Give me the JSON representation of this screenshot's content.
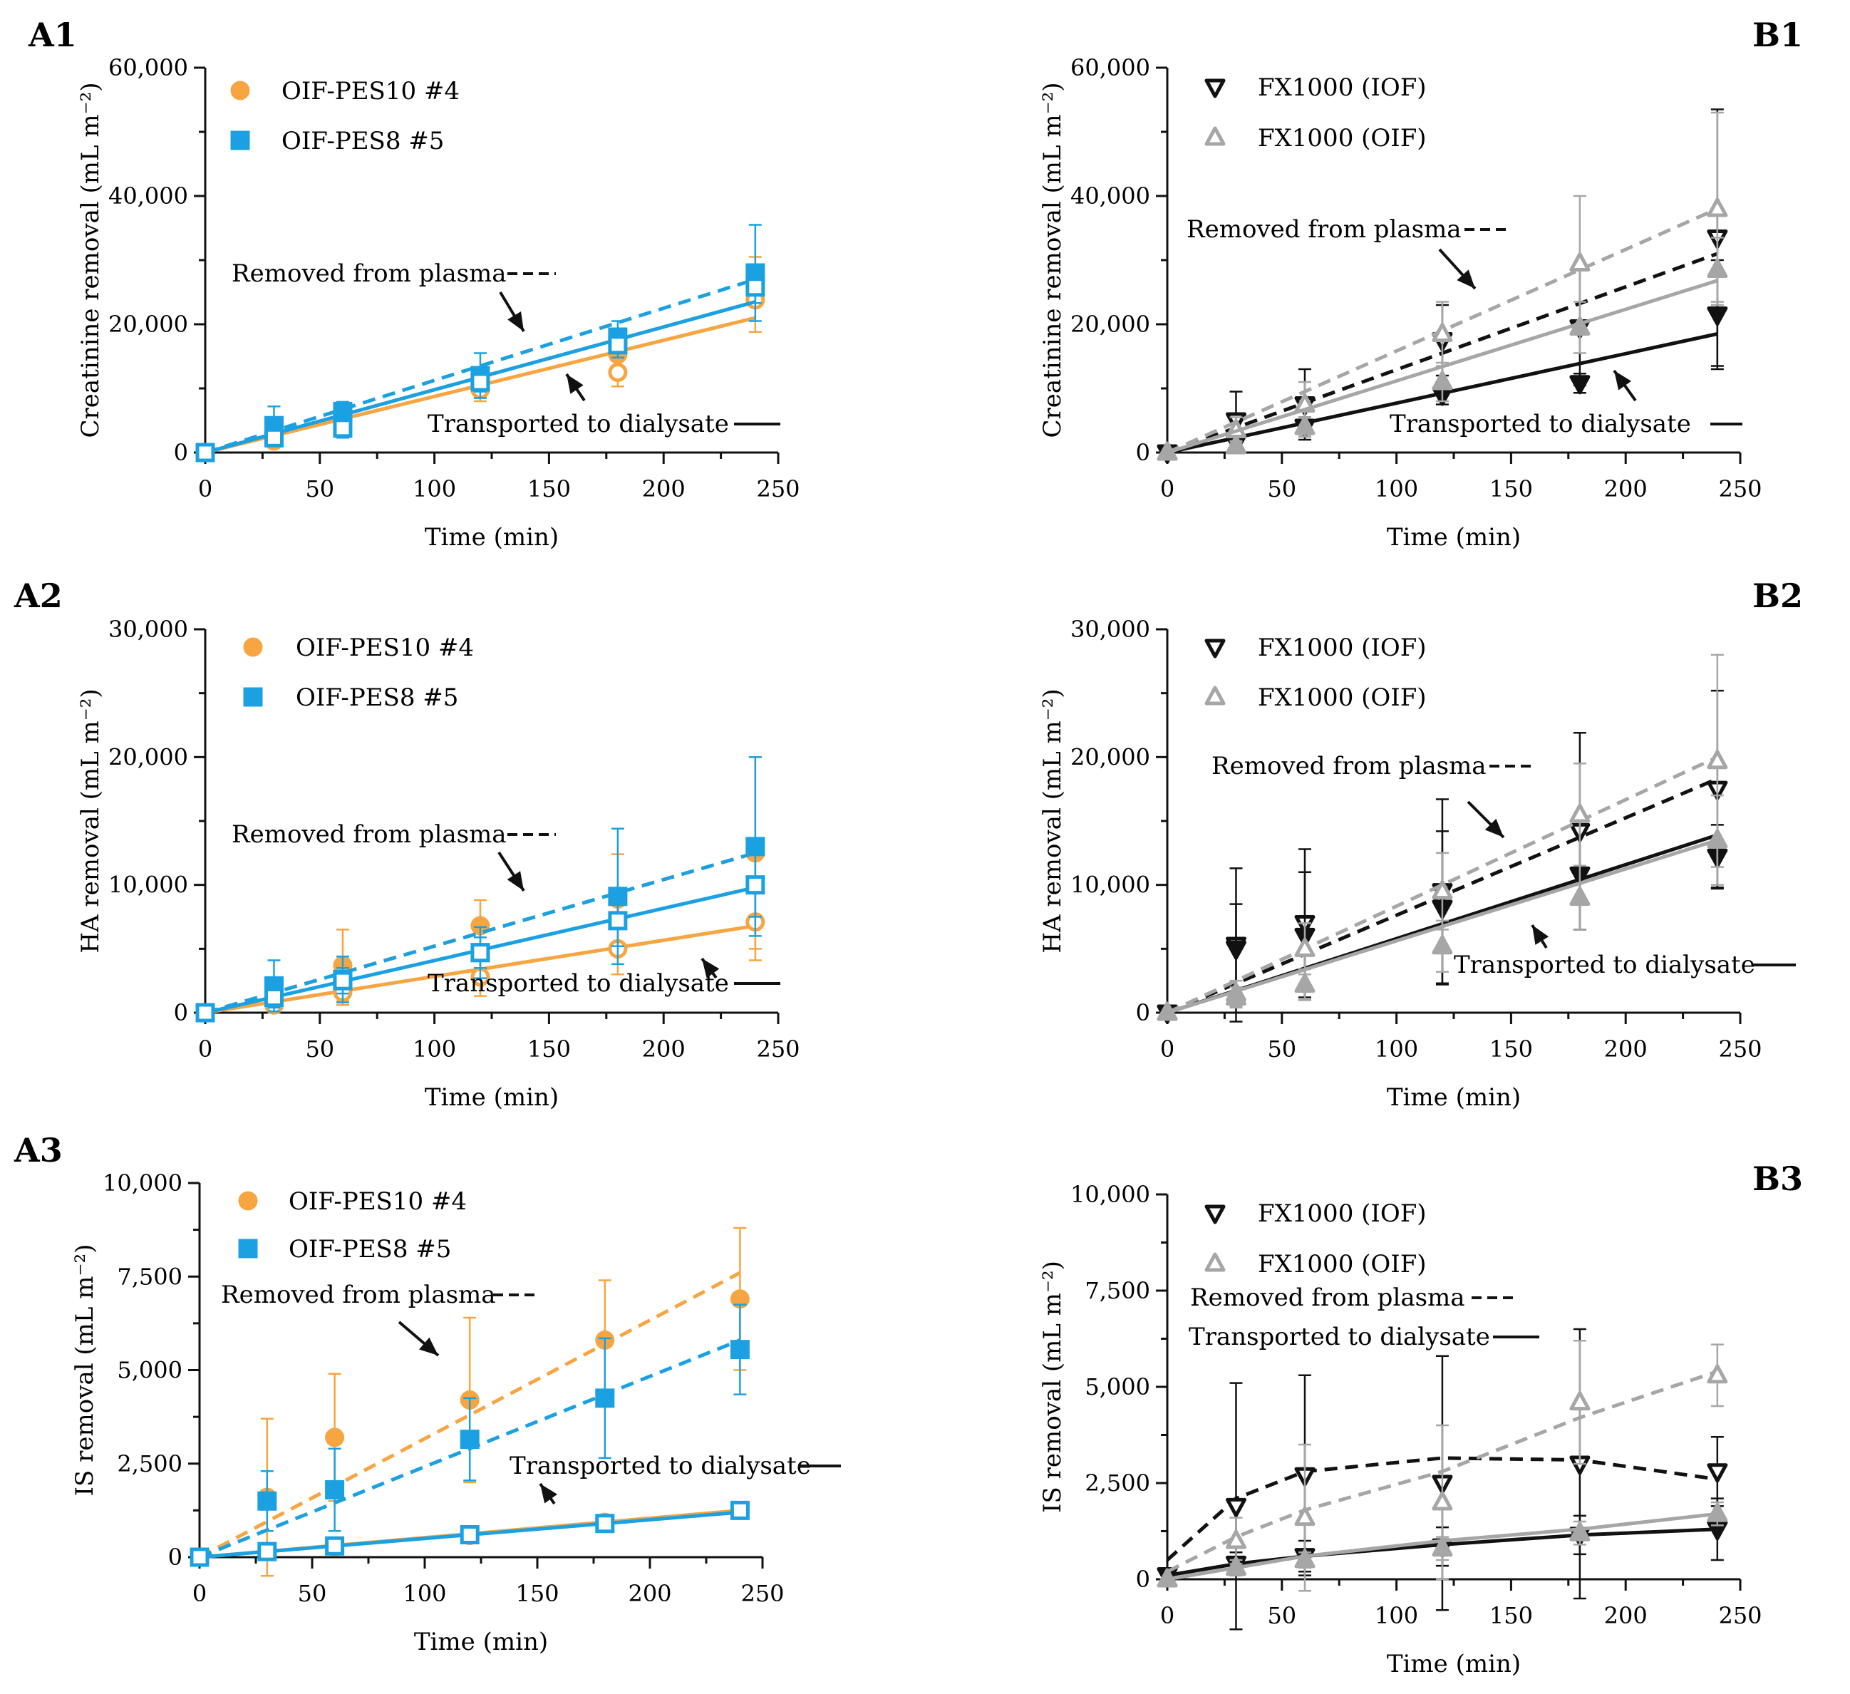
{
  "figure": {
    "colors": {
      "orange": "#f7a541",
      "blue": "#1ba1e2",
      "black": "#111111",
      "gray": "#a6a6a6"
    }
  },
  "chart_data": [
    {
      "panel": "A1",
      "type": "line",
      "xlabel": "Time (min)",
      "ylabel": "Creatinine removal (mL m⁻²)",
      "xlim": [
        0,
        250
      ],
      "ylim": [
        0,
        60000
      ],
      "xticks": [
        0,
        50,
        100,
        150,
        200,
        250
      ],
      "yticks": [
        0,
        20000,
        40000,
        60000
      ],
      "ytick_labels": [
        "0",
        "20,000",
        "40,000",
        "60,000"
      ],
      "x": [
        0,
        30,
        60,
        120,
        180,
        240
      ],
      "legend": [
        {
          "label": "OIF-PES10 #4",
          "marker": "circle",
          "color": "#f7a541"
        },
        {
          "label": "OIF-PES8 #5",
          "marker": "square",
          "color": "#1ba1e2"
        }
      ],
      "annotations": {
        "plasma": "Removed from plasma",
        "dialysate": "Transported to dialysate"
      },
      "series": [
        {
          "name": "OIF-PES10 #4 removed from plasma",
          "color": "#f7a541",
          "marker": "circle",
          "filled": true,
          "values": [
            0,
            2000,
            5300,
            10500,
            15300,
            27000
          ],
          "errors": [
            0,
            1200,
            1500,
            2000,
            2500,
            3500
          ],
          "fit_line": [
            0,
            23500
          ]
        },
        {
          "name": "OIF-PES10 #4 transported to dialysate",
          "color": "#f7a541",
          "marker": "circle",
          "filled": false,
          "values": [
            0,
            1800,
            4800,
            9800,
            12500,
            23800
          ],
          "errors": [
            0,
            1000,
            1500,
            1800,
            2200,
            5000
          ],
          "fit_line": [
            0,
            21000
          ]
        },
        {
          "name": "OIF-PES8 #5 removed from plasma",
          "color": "#1ba1e2",
          "marker": "square",
          "filled": true,
          "values": [
            0,
            4200,
            6400,
            12000,
            18000,
            28000
          ],
          "errors": [
            0,
            3000,
            1500,
            3500,
            2500,
            7500
          ],
          "fit_line": [
            0,
            27000
          ]
        },
        {
          "name": "OIF-PES8 #5 transported to dialysate",
          "color": "#1ba1e2",
          "marker": "square",
          "filled": false,
          "values": [
            0,
            2300,
            3800,
            11000,
            16800,
            25800
          ],
          "errors": [
            0,
            1000,
            1500,
            1500,
            2000,
            2500
          ],
          "fit_line": [
            0,
            23500
          ]
        }
      ]
    },
    {
      "panel": "B1",
      "type": "line",
      "xlabel": "Time (min)",
      "ylabel": "Creatinine removal (mL m⁻²)",
      "xlim": [
        0,
        250
      ],
      "ylim": [
        0,
        60000
      ],
      "xticks": [
        0,
        50,
        100,
        150,
        200,
        250
      ],
      "yticks": [
        0,
        20000,
        40000,
        60000
      ],
      "ytick_labels": [
        "0",
        "20,000",
        "40,000",
        "60,000"
      ],
      "x": [
        0,
        30,
        60,
        120,
        180,
        240
      ],
      "legend": [
        {
          "label": "FX1000 (IOF)",
          "marker": "triangle-down",
          "color": "#111111"
        },
        {
          "label": "FX1000 (OIF)",
          "marker": "triangle-up",
          "color": "#a6a6a6"
        }
      ],
      "annotations": {
        "plasma": "Removed from plasma",
        "dialysate": "Transported to dialysate"
      },
      "series": [
        {
          "name": "FX1000 (IOF) removed from plasma",
          "color": "#111111",
          "marker": "triangle-down",
          "filled": false,
          "values": [
            0,
            5000,
            7500,
            17500,
            19500,
            33500
          ],
          "errors": [
            0,
            4500,
            5500,
            5500,
            9000,
            20000
          ],
          "fit_line": [
            0,
            31000
          ]
        },
        {
          "name": "FX1000 (IOF) transported to dialysate",
          "color": "#111111",
          "marker": "triangle-down",
          "filled": true,
          "values": [
            0,
            1500,
            4000,
            9000,
            10800,
            21500
          ],
          "errors": [
            0,
            1000,
            1500,
            1500,
            1500,
            8500
          ],
          "fit_line": [
            0,
            18500
          ]
        },
        {
          "name": "FX1000 (OIF) removed from plasma",
          "color": "#a6a6a6",
          "marker": "triangle-up",
          "filled": false,
          "values": [
            0,
            3500,
            7500,
            18500,
            29500,
            38000
          ],
          "errors": [
            0,
            2000,
            3500,
            5000,
            10500,
            15000
          ],
          "fit_line": [
            0,
            38000
          ]
        },
        {
          "name": "FX1000 (OIF) transported to dialysate",
          "color": "#a6a6a6",
          "marker": "triangle-up",
          "filled": true,
          "values": [
            0,
            1000,
            4000,
            11000,
            19500,
            28500
          ],
          "errors": [
            0,
            800,
            1500,
            3000,
            4000,
            5000
          ],
          "fit_line": [
            0,
            26800
          ]
        }
      ]
    },
    {
      "panel": "A2",
      "type": "line",
      "xlabel": "Time (min)",
      "ylabel": "HA removal (mL m⁻²)",
      "xlim": [
        0,
        250
      ],
      "ylim": [
        0,
        30000
      ],
      "xticks": [
        0,
        50,
        100,
        150,
        200,
        250
      ],
      "yticks": [
        0,
        10000,
        20000,
        30000
      ],
      "ytick_labels": [
        "0",
        "10,000",
        "20,000",
        "30,000"
      ],
      "x": [
        0,
        30,
        60,
        120,
        180,
        240
      ],
      "legend": [
        {
          "label": "OIF-PES10 #4",
          "marker": "circle",
          "color": "#f7a541"
        },
        {
          "label": "OIF-PES8 #5",
          "marker": "square",
          "color": "#1ba1e2"
        }
      ],
      "annotations": {
        "plasma": "Removed from plasma",
        "dialysate": "Transported to dialysate"
      },
      "series": [
        {
          "name": "OIF-PES10 #4 removed from plasma",
          "color": "#f7a541",
          "marker": "circle",
          "filled": true,
          "values": [
            0,
            1000,
            3700,
            6800,
            8900,
            12500
          ],
          "errors": [
            0,
            1000,
            2800,
            2000,
            3500,
            7500
          ],
          "fit_line": [
            0,
            12500
          ]
        },
        {
          "name": "OIF-PES10 #4 transported to dialysate",
          "color": "#f7a541",
          "marker": "circle",
          "filled": false,
          "values": [
            0,
            600,
            1600,
            2800,
            5000,
            7100
          ],
          "errors": [
            0,
            500,
            1000,
            1500,
            2000,
            3000
          ],
          "fit_line": [
            0,
            6800
          ]
        },
        {
          "name": "OIF-PES8 #5 removed from plasma",
          "color": "#1ba1e2",
          "marker": "square",
          "filled": true,
          "values": [
            0,
            2100,
            2600,
            4700,
            9100,
            13000
          ],
          "errors": [
            0,
            2000,
            1800,
            2000,
            5300,
            7000
          ],
          "fit_line": [
            0,
            12500
          ]
        },
        {
          "name": "OIF-PES8 #5 transported to dialysate",
          "color": "#1ba1e2",
          "marker": "square",
          "filled": false,
          "values": [
            0,
            1200,
            2500,
            4700,
            7200,
            10000
          ],
          "errors": [
            0,
            800,
            1000,
            1200,
            2000,
            2500
          ],
          "fit_line": [
            0,
            9800
          ]
        }
      ]
    },
    {
      "panel": "B2",
      "type": "line",
      "xlabel": "Time (min)",
      "ylabel": "HA removal (mL m⁻²)",
      "xlim": [
        0,
        250
      ],
      "ylim": [
        0,
        30000
      ],
      "xticks": [
        0,
        50,
        100,
        150,
        200,
        250
      ],
      "yticks": [
        0,
        10000,
        20000,
        30000
      ],
      "ytick_labels": [
        "0",
        "10,000",
        "20,000",
        "30,000"
      ],
      "x": [
        0,
        30,
        60,
        120,
        180,
        240
      ],
      "legend": [
        {
          "label": "FX1000 (IOF)",
          "marker": "triangle-down",
          "color": "#111111"
        },
        {
          "label": "FX1000 (OIF)",
          "marker": "triangle-up",
          "color": "#a6a6a6"
        }
      ],
      "annotations": {
        "plasma": "Removed from plasma",
        "dialysate": "Transported to dialysate"
      },
      "series": [
        {
          "name": "FX1000 (IOF) removed from plasma",
          "color": "#111111",
          "marker": "triangle-down",
          "filled": false,
          "values": [
            0,
            5300,
            7000,
            9500,
            14200,
            17500
          ],
          "errors": [
            0,
            6000,
            5800,
            7200,
            7700,
            7700
          ],
          "fit_line": [
            0,
            18300
          ]
        },
        {
          "name": "FX1000 (IOF) transported to dialysate",
          "color": "#111111",
          "marker": "triangle-down",
          "filled": true,
          "values": [
            0,
            5000,
            6000,
            8200,
            10800,
            12200
          ],
          "errors": [
            0,
            3500,
            5000,
            6000,
            4300,
            2500
          ],
          "fit_line": [
            0,
            13900
          ]
        },
        {
          "name": "FX1000 (OIF) removed from plasma",
          "color": "#a6a6a6",
          "marker": "triangle-up",
          "filled": false,
          "values": [
            0,
            1500,
            5000,
            9500,
            15500,
            19700
          ],
          "errors": [
            0,
            1000,
            2000,
            3000,
            4000,
            8300
          ],
          "fit_line": [
            0,
            20000
          ]
        },
        {
          "name": "FX1000 (OIF) transported to dialysate",
          "color": "#a6a6a6",
          "marker": "triangle-up",
          "filled": true,
          "values": [
            0,
            1200,
            2200,
            5200,
            9000,
            13500
          ],
          "errors": [
            0,
            800,
            1200,
            2000,
            2500,
            3500
          ],
          "fit_line": [
            0,
            13500
          ]
        }
      ]
    },
    {
      "panel": "A3",
      "type": "line",
      "xlabel": "Time (min)",
      "ylabel": "IS removal  (mL m⁻²)",
      "xlim": [
        0,
        250
      ],
      "ylim": [
        0,
        10000
      ],
      "xticks": [
        0,
        50,
        100,
        150,
        200,
        250
      ],
      "yticks": [
        0,
        2500,
        5000,
        7500,
        10000
      ],
      "ytick_labels": [
        "0",
        "2,500",
        "5,000",
        "7,500",
        "10,000"
      ],
      "x": [
        0,
        30,
        60,
        120,
        180,
        240
      ],
      "legend": [
        {
          "label": "OIF-PES10 #4",
          "marker": "circle",
          "color": "#f7a541"
        },
        {
          "label": "OIF-PES8 #5",
          "marker": "square",
          "color": "#1ba1e2"
        }
      ],
      "annotations": {
        "plasma": "Removed from plasma",
        "dialysate": "Transported to dialysate"
      },
      "series": [
        {
          "name": "OIF-PES10 #4 removed from plasma",
          "color": "#f7a541",
          "marker": "circle",
          "filled": true,
          "values": [
            0,
            1600,
            3200,
            4200,
            5800,
            6900
          ],
          "errors": [
            0,
            2100,
            1700,
            2200,
            1600,
            1900
          ],
          "fit_line": [
            0,
            7600
          ]
        },
        {
          "name": "OIF-PES10 #4 transported to dialysate",
          "color": "#f7a541",
          "marker": "circle",
          "filled": false,
          "values": [
            0,
            150,
            280,
            580,
            930,
            1250
          ],
          "errors": [
            0,
            80,
            100,
            120,
            150,
            150
          ],
          "fit_line": [
            0,
            1250
          ]
        },
        {
          "name": "OIF-PES8 #5 removed from plasma",
          "color": "#1ba1e2",
          "marker": "square",
          "filled": true,
          "values": [
            0,
            1500,
            1800,
            3150,
            4250,
            5550
          ],
          "errors": [
            0,
            800,
            1100,
            1100,
            1600,
            1200
          ],
          "fit_line": [
            0,
            5800
          ]
        },
        {
          "name": "OIF-PES8 #5 transported to dialysate",
          "color": "#1ba1e2",
          "marker": "square",
          "filled": false,
          "values": [
            0,
            150,
            300,
            600,
            900,
            1250
          ],
          "errors": [
            0,
            80,
            100,
            120,
            150,
            150
          ],
          "fit_line": [
            0,
            1200
          ]
        }
      ]
    },
    {
      "panel": "B3",
      "type": "line",
      "xlabel": "Time (min)",
      "ylabel": "IS removal  (mL m⁻²)",
      "xlim": [
        0,
        250
      ],
      "ylim": [
        0,
        10000
      ],
      "xticks": [
        0,
        50,
        100,
        150,
        200,
        250
      ],
      "yticks": [
        0,
        2500,
        5000,
        7500,
        10000
      ],
      "ytick_labels": [
        "0",
        "2,500",
        "5,000",
        "7,500",
        "10,000"
      ],
      "x": [
        0,
        30,
        60,
        120,
        180,
        240
      ],
      "legend": [
        {
          "label": "FX1000 (IOF)",
          "marker": "triangle-down",
          "color": "#111111"
        },
        {
          "label": "FX1000 (OIF)",
          "marker": "triangle-up",
          "color": "#a6a6a6"
        }
      ],
      "annotations": {
        "plasma": "Removed from plasma",
        "dialysate": "Transported to dialysate"
      },
      "series": [
        {
          "name": "FX1000 (IOF) removed from plasma",
          "color": "#111111",
          "marker": "triangle-down",
          "filled": false,
          "values": [
            100,
            1900,
            2700,
            2500,
            3000,
            2800
          ],
          "errors": [
            0,
            3200,
            2600,
            3300,
            3500,
            900
          ],
          "fit_line": [
            500,
            2100,
            2800,
            3150,
            3100,
            2600
          ]
        },
        {
          "name": "FX1000 (IOF) transported to dialysate",
          "color": "#111111",
          "marker": "triangle-down",
          "filled": true,
          "values": [
            100,
            400,
            600,
            850,
            1150,
            1300
          ],
          "errors": [
            0,
            300,
            400,
            500,
            500,
            800
          ],
          "fit_line": [
            100,
            400,
            600,
            900,
            1150,
            1300
          ]
        },
        {
          "name": "FX1000 (OIF) removed from plasma",
          "color": "#a6a6a6",
          "marker": "triangle-up",
          "filled": false,
          "values": [
            0,
            1000,
            1600,
            2000,
            4600,
            5300
          ],
          "errors": [
            0,
            600,
            1900,
            2000,
            1600,
            800
          ],
          "fit_line": [
            200,
            1100,
            1800,
            2800,
            4200,
            5400
          ]
        },
        {
          "name": "FX1000 (OIF) transported to dialysate",
          "color": "#a6a6a6",
          "marker": "triangle-up",
          "filled": true,
          "values": [
            0,
            300,
            500,
            800,
            1200,
            1700
          ],
          "errors": [
            0,
            200,
            200,
            300,
            300,
            300
          ],
          "fit_line": [
            0,
            300,
            600,
            1000,
            1300,
            1700
          ]
        }
      ]
    }
  ]
}
